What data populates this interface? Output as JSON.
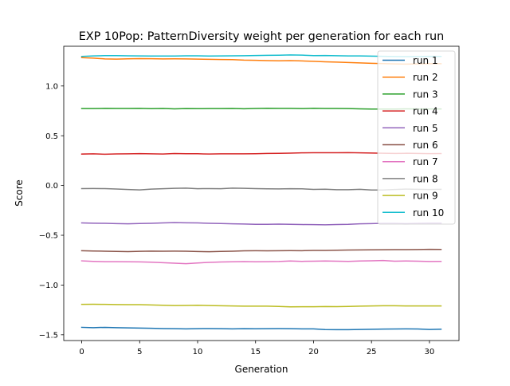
{
  "chart_data": {
    "type": "line",
    "title": "EXP 10Pop: PatternDiversity weight per generation for each run",
    "xlabel": "Generation",
    "ylabel": "Score",
    "xlim": [
      -1.55,
      32.55
    ],
    "ylim": [
      -1.5576,
      1.3992
    ],
    "xticks": [
      0,
      5,
      10,
      15,
      20,
      25,
      30
    ],
    "yticks": [
      -1.5,
      -1.0,
      -0.5,
      0.0,
      0.5,
      1.0
    ],
    "ytick_labels": [
      "−1.5",
      "−1.0",
      "−0.5",
      "0.0",
      "0.5",
      "1.0"
    ],
    "grid": false,
    "legend_position": "top-right",
    "x": [
      0,
      1,
      2,
      3,
      4,
      5,
      6,
      7,
      8,
      9,
      10,
      11,
      12,
      13,
      14,
      15,
      16,
      17,
      18,
      19,
      20,
      21,
      22,
      23,
      24,
      25,
      26,
      27,
      28,
      29,
      30,
      31
    ],
    "series": [
      {
        "name": "run 1",
        "color": "#1f77b4",
        "values": [
          -1.425,
          -1.428,
          -1.425,
          -1.428,
          -1.43,
          -1.432,
          -1.434,
          -1.437,
          -1.438,
          -1.44,
          -1.438,
          -1.437,
          -1.438,
          -1.44,
          -1.438,
          -1.439,
          -1.438,
          -1.437,
          -1.438,
          -1.44,
          -1.44,
          -1.447,
          -1.448,
          -1.448,
          -1.446,
          -1.444,
          -1.442,
          -1.441,
          -1.44,
          -1.441,
          -1.446,
          -1.444
        ]
      },
      {
        "name": "run 2",
        "color": "#ff7f0e",
        "values": [
          1.285,
          1.28,
          1.272,
          1.27,
          1.273,
          1.275,
          1.274,
          1.272,
          1.273,
          1.272,
          1.27,
          1.268,
          1.266,
          1.265,
          1.26,
          1.258,
          1.255,
          1.253,
          1.255,
          1.252,
          1.248,
          1.243,
          1.24,
          1.236,
          1.232,
          1.228,
          1.225,
          1.222,
          1.22,
          1.222,
          1.225,
          1.224
        ]
      },
      {
        "name": "run 3",
        "color": "#2ca02c",
        "values": [
          0.773,
          0.773,
          0.775,
          0.774,
          0.774,
          0.775,
          0.772,
          0.774,
          0.77,
          0.773,
          0.772,
          0.773,
          0.773,
          0.774,
          0.771,
          0.774,
          0.776,
          0.775,
          0.775,
          0.773,
          0.776,
          0.774,
          0.774,
          0.773,
          0.77,
          0.768,
          0.768,
          0.768,
          0.77,
          0.769,
          0.769,
          0.769
        ]
      },
      {
        "name": "run 4",
        "color": "#d62728",
        "values": [
          0.316,
          0.318,
          0.314,
          0.317,
          0.318,
          0.32,
          0.318,
          0.316,
          0.321,
          0.319,
          0.319,
          0.316,
          0.318,
          0.318,
          0.318,
          0.319,
          0.322,
          0.323,
          0.325,
          0.328,
          0.329,
          0.329,
          0.329,
          0.33,
          0.328,
          0.326,
          0.324,
          0.322,
          0.324,
          0.322,
          0.32,
          0.321
        ]
      },
      {
        "name": "run 5",
        "color": "#9467bd",
        "values": [
          -0.376,
          -0.379,
          -0.38,
          -0.383,
          -0.385,
          -0.382,
          -0.38,
          -0.376,
          -0.373,
          -0.375,
          -0.376,
          -0.38,
          -0.382,
          -0.385,
          -0.387,
          -0.39,
          -0.39,
          -0.388,
          -0.39,
          -0.392,
          -0.393,
          -0.395,
          -0.392,
          -0.39,
          -0.385,
          -0.383,
          -0.38,
          -0.38,
          -0.383,
          -0.38,
          -0.378,
          -0.378
        ]
      },
      {
        "name": "run 6",
        "color": "#8c564b",
        "values": [
          -0.655,
          -0.658,
          -0.66,
          -0.662,
          -0.664,
          -0.661,
          -0.659,
          -0.66,
          -0.659,
          -0.66,
          -0.663,
          -0.665,
          -0.662,
          -0.66,
          -0.656,
          -0.655,
          -0.656,
          -0.655,
          -0.654,
          -0.655,
          -0.652,
          -0.652,
          -0.65,
          -0.648,
          -0.647,
          -0.646,
          -0.645,
          -0.644,
          -0.644,
          -0.643,
          -0.641,
          -0.642
        ]
      },
      {
        "name": "run 7",
        "color": "#e377c2",
        "values": [
          -0.757,
          -0.762,
          -0.765,
          -0.765,
          -0.766,
          -0.767,
          -0.77,
          -0.775,
          -0.78,
          -0.785,
          -0.778,
          -0.772,
          -0.768,
          -0.766,
          -0.764,
          -0.766,
          -0.765,
          -0.763,
          -0.758,
          -0.762,
          -0.76,
          -0.758,
          -0.76,
          -0.762,
          -0.758,
          -0.756,
          -0.753,
          -0.76,
          -0.758,
          -0.76,
          -0.763,
          -0.762
        ]
      },
      {
        "name": "run 8",
        "color": "#7f7f7f",
        "values": [
          -0.031,
          -0.03,
          -0.031,
          -0.035,
          -0.04,
          -0.044,
          -0.036,
          -0.032,
          -0.028,
          -0.026,
          -0.032,
          -0.031,
          -0.032,
          -0.026,
          -0.028,
          -0.031,
          -0.033,
          -0.034,
          -0.032,
          -0.033,
          -0.039,
          -0.037,
          -0.042,
          -0.042,
          -0.038,
          -0.045,
          -0.045,
          -0.04,
          -0.036,
          -0.038,
          -0.04,
          -0.038
        ]
      },
      {
        "name": "run 9",
        "color": "#bcbd22",
        "values": [
          -1.194,
          -1.193,
          -1.194,
          -1.196,
          -1.197,
          -1.197,
          -1.2,
          -1.203,
          -1.206,
          -1.205,
          -1.203,
          -1.206,
          -1.208,
          -1.21,
          -1.212,
          -1.212,
          -1.212,
          -1.215,
          -1.219,
          -1.218,
          -1.218,
          -1.216,
          -1.217,
          -1.215,
          -1.212,
          -1.21,
          -1.208,
          -1.208,
          -1.21,
          -1.21,
          -1.21,
          -1.21
        ]
      },
      {
        "name": "run 10",
        "color": "#17becf",
        "values": [
          1.297,
          1.302,
          1.305,
          1.305,
          1.303,
          1.302,
          1.301,
          1.301,
          1.301,
          1.303,
          1.303,
          1.301,
          1.302,
          1.303,
          1.304,
          1.306,
          1.308,
          1.309,
          1.312,
          1.31,
          1.305,
          1.306,
          1.304,
          1.302,
          1.302,
          1.3,
          1.298,
          1.296,
          1.295,
          1.296,
          1.298,
          1.297
        ]
      }
    ]
  }
}
